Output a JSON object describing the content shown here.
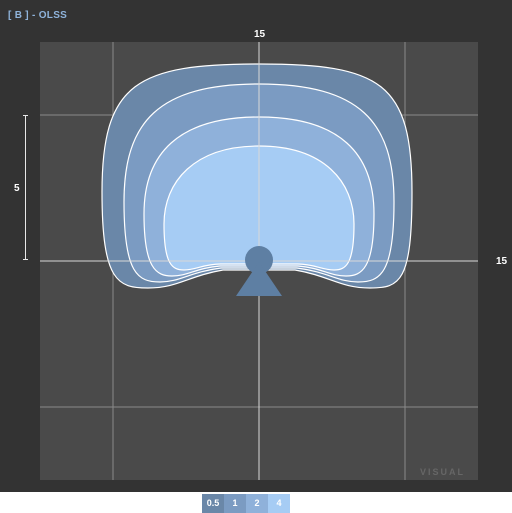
{
  "header": {
    "title": "[ B ] - OLSS"
  },
  "axes": {
    "top_label": "15",
    "right_label": "15",
    "scale_label": "5"
  },
  "watermark": "VISUAL",
  "legend": {
    "items": [
      {
        "label": "0.5",
        "color": "#6a87a8"
      },
      {
        "label": "1",
        "color": "#7b9bc2"
      },
      {
        "label": "2",
        "color": "#8fb1da"
      },
      {
        "label": "4",
        "color": "#a6ccf4"
      }
    ]
  },
  "colors": {
    "background": "#333333",
    "plot_area": "#4a4a4a",
    "contour_outline": "#ffffff",
    "speaker_shape": "#5e7fa3"
  }
}
